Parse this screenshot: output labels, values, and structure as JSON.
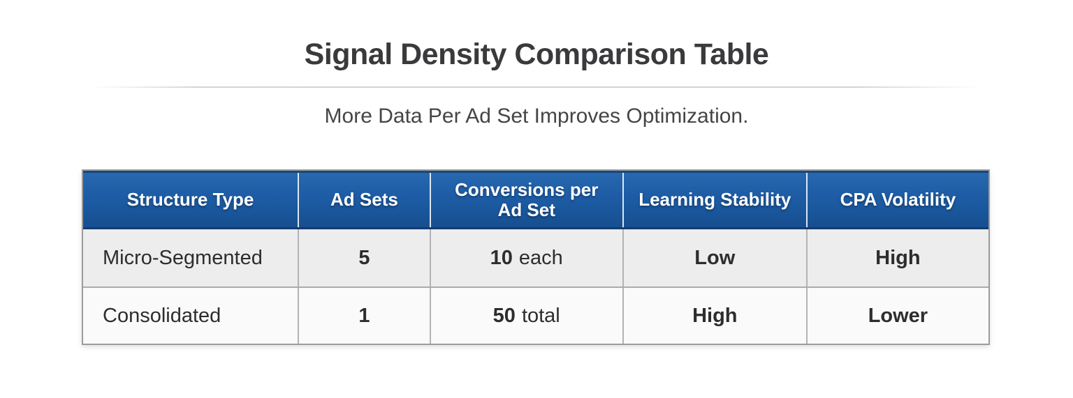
{
  "page": {
    "title": "Signal Density Comparison Table",
    "subtitle": "More Data Per Ad Set Improves Optimization."
  },
  "table": {
    "columns": [
      "Structure Type",
      "Ad Sets",
      "Conversions per Ad Set",
      "Learning Stability",
      "CPA Volatility"
    ],
    "rows": [
      {
        "structure_type": "Micro-Segmented",
        "ad_sets": "5",
        "conversions_value": "10",
        "conversions_suffix": "each",
        "learning_stability": "Low",
        "cpa_volatility": "High"
      },
      {
        "structure_type": "Consolidated",
        "ad_sets": "1",
        "conversions_value": "50",
        "conversions_suffix": "total",
        "learning_stability": "High",
        "cpa_volatility": "Lower"
      }
    ]
  },
  "colors": {
    "header_blue": "#1d5ca5",
    "header_blue_dark": "#164f90",
    "header_border_navy": "#123d6f",
    "row_alt_bg": "#ededee",
    "row_bg": "#fafafa",
    "outer_border": "#9b9b9b",
    "title_text": "#3a3a3c",
    "header_text": "#ffffff"
  },
  "chart_data": {
    "type": "table",
    "title": "Signal Density Comparison Table",
    "subtitle": "More Data Per Ad Set Improves Optimization.",
    "columns": [
      "Structure Type",
      "Ad Sets",
      "Conversions per Ad Set",
      "Learning Stability",
      "CPA Volatility"
    ],
    "rows": [
      [
        "Micro-Segmented",
        "5",
        "10 each",
        "Low",
        "High"
      ],
      [
        "Consolidated",
        "1",
        "50 total",
        "High",
        "Lower"
      ]
    ]
  }
}
